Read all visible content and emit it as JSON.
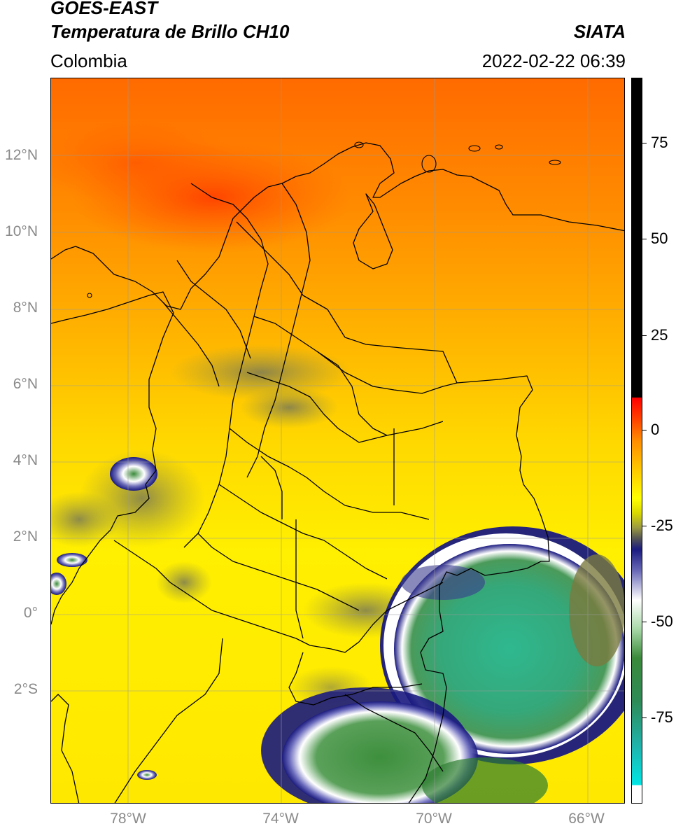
{
  "header": {
    "line1": "GOES-EAST",
    "line2": "Temperatura de Brillo CH10",
    "org": "SIATA",
    "region": "Colombia",
    "datetime": "2022-02-22 06:39"
  },
  "axes": {
    "lat_labels": [
      "12°N",
      "10°N",
      "8°N",
      "6°N",
      "4°N",
      "2°N",
      "0°",
      "2°S"
    ],
    "lon_labels": [
      "78°W",
      "74°W",
      "70°W",
      "66°W"
    ]
  },
  "colorbar": {
    "ticks": [
      "75",
      "50",
      "25",
      "0",
      "-25",
      "-50",
      "-75"
    ]
  },
  "colors": {
    "warm_orange": "#ff8c00",
    "yellow": "#ffff00",
    "olive": "#8a8a3a",
    "navy": "#1a1a80",
    "green": "#2e8b3a",
    "teal": "#20b2aa",
    "red": "#ff2200"
  }
}
